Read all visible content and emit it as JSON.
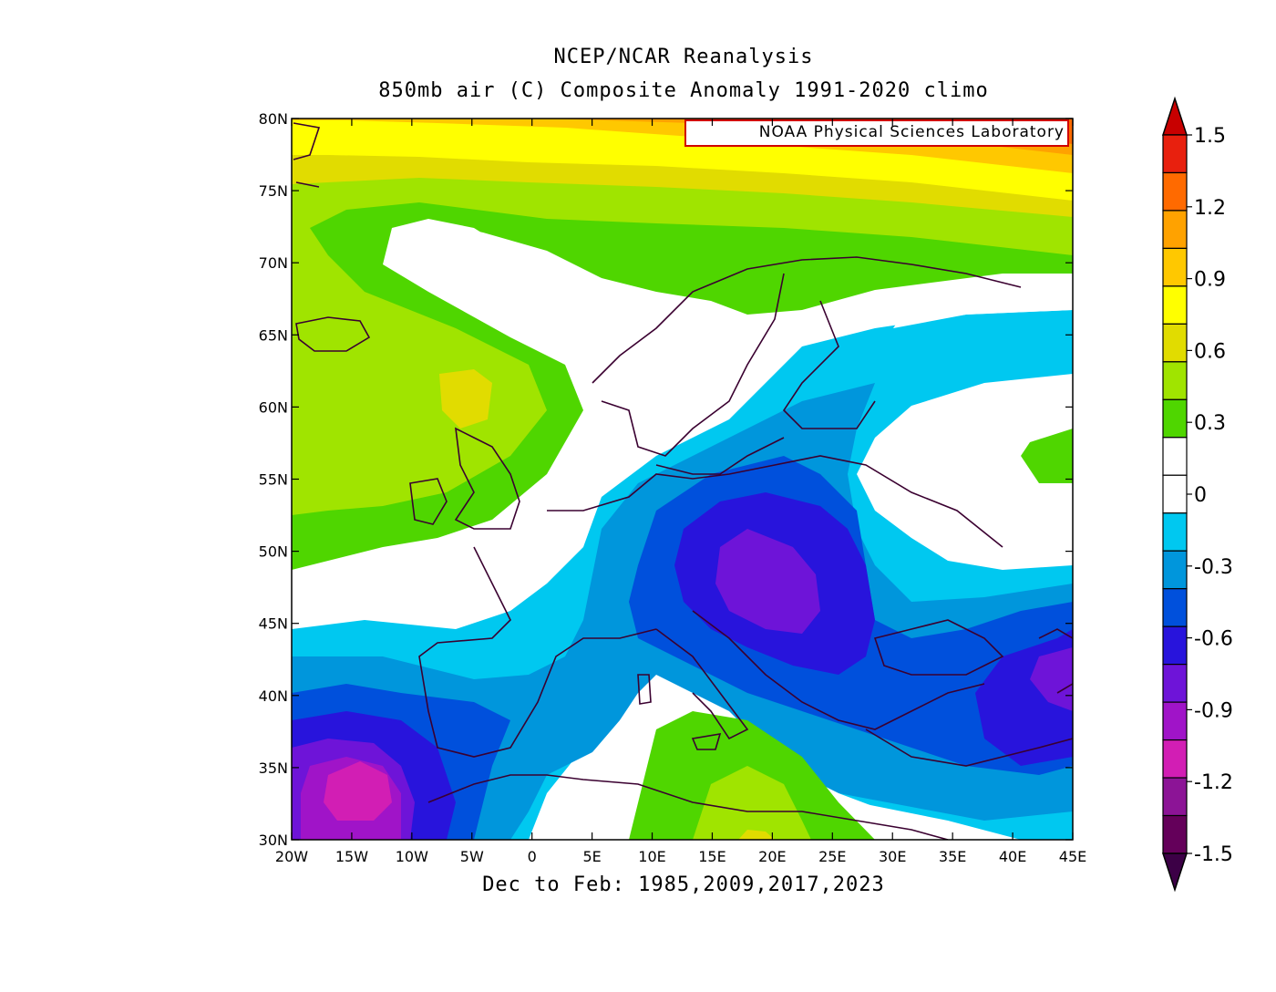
{
  "title": "NCEP/NCAR Reanalysis",
  "subtitle": "850mb air (C) Composite Anomaly 1991-2020 climo",
  "caption": "Dec to Feb: 1985,2009,2017,2023",
  "credit": "NOAA Physical Sciences Laboratory",
  "map": {
    "lon_range": [
      -20,
      45
    ],
    "lat_range": [
      30,
      80
    ],
    "lon_ticks": [
      "20W",
      "15W",
      "10W",
      "5W",
      "0",
      "5E",
      "10E",
      "15E",
      "20E",
      "25E",
      "30E",
      "35E",
      "40E",
      "45E"
    ],
    "lat_ticks": [
      "30N",
      "35N",
      "40N",
      "45N",
      "50N",
      "55N",
      "60N",
      "65N",
      "70N",
      "75N",
      "80N"
    ]
  },
  "colorbar": {
    "labels": [
      "1.5",
      "1.2",
      "0.9",
      "0.6",
      "0.3",
      "0",
      "-0.3",
      "-0.6",
      "-0.9",
      "-1.2",
      "-1.5"
    ],
    "colors": [
      "#e8200e",
      "#ff6a00",
      "#ffa200",
      "#ffc800",
      "#ffff00",
      "#e1dc00",
      "#a0e400",
      "#4fd600",
      "#ffffff",
      "#ffffff",
      "#00c8f0",
      "#0096dc",
      "#0050dc",
      "#2814dc",
      "#6e14d8",
      "#a014c8",
      "#d21eb4",
      "#8c1496",
      "#64005a"
    ],
    "over_color": "#c80000",
    "under_color": "#3c0046"
  }
}
